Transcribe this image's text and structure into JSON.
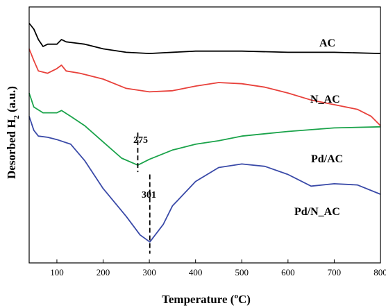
{
  "chart_data": {
    "type": "line",
    "xlabel_main": "Temperature (",
    "xlabel_sup": "o",
    "xlabel_end": "C)",
    "ylabel_main": "Desorbed H",
    "ylabel_sub": "2",
    "ylabel_end": " (a.u.)",
    "xlim": [
      40,
      800
    ],
    "xticks": [
      100,
      200,
      300,
      400,
      500,
      600,
      700,
      800
    ],
    "yticks_shown": false,
    "legend": "inline labels at right of each curve",
    "series": [
      {
        "name": "AC",
        "color": "#000000",
        "points": [
          [
            40,
            9.7
          ],
          [
            50,
            9.45
          ],
          [
            60,
            9.0
          ],
          [
            70,
            8.7
          ],
          [
            80,
            8.8
          ],
          [
            100,
            8.8
          ],
          [
            110,
            9.0
          ],
          [
            120,
            8.9
          ],
          [
            140,
            8.85
          ],
          [
            160,
            8.8
          ],
          [
            200,
            8.6
          ],
          [
            250,
            8.45
          ],
          [
            300,
            8.4
          ],
          [
            400,
            8.5
          ],
          [
            500,
            8.5
          ],
          [
            600,
            8.45
          ],
          [
            700,
            8.45
          ],
          [
            800,
            8.4
          ]
        ]
      },
      {
        "name": "N_AC",
        "color": "#e8413b",
        "points": [
          [
            40,
            8.6
          ],
          [
            50,
            8.1
          ],
          [
            60,
            7.65
          ],
          [
            80,
            7.55
          ],
          [
            100,
            7.75
          ],
          [
            110,
            7.9
          ],
          [
            120,
            7.65
          ],
          [
            150,
            7.55
          ],
          [
            200,
            7.3
          ],
          [
            250,
            6.9
          ],
          [
            300,
            6.75
          ],
          [
            350,
            6.8
          ],
          [
            400,
            7.0
          ],
          [
            450,
            7.15
          ],
          [
            500,
            7.1
          ],
          [
            550,
            6.95
          ],
          [
            600,
            6.7
          ],
          [
            650,
            6.4
          ],
          [
            700,
            6.2
          ],
          [
            750,
            6.0
          ],
          [
            780,
            5.7
          ],
          [
            800,
            5.3
          ]
        ]
      },
      {
        "name": "Pd/AC",
        "color": "#1aa34a",
        "points": [
          [
            40,
            6.7
          ],
          [
            50,
            6.1
          ],
          [
            70,
            5.85
          ],
          [
            100,
            5.85
          ],
          [
            110,
            5.95
          ],
          [
            130,
            5.7
          ],
          [
            160,
            5.3
          ],
          [
            200,
            4.6
          ],
          [
            240,
            3.9
          ],
          [
            275,
            3.6
          ],
          [
            300,
            3.85
          ],
          [
            350,
            4.25
          ],
          [
            400,
            4.5
          ],
          [
            450,
            4.65
          ],
          [
            500,
            4.85
          ],
          [
            550,
            4.95
          ],
          [
            600,
            5.05
          ],
          [
            700,
            5.2
          ],
          [
            800,
            5.25
          ]
        ]
      },
      {
        "name": "Pd/N_AC",
        "color": "#3a4aa8",
        "points": [
          [
            40,
            5.7
          ],
          [
            50,
            5.1
          ],
          [
            60,
            4.85
          ],
          [
            80,
            4.8
          ],
          [
            100,
            4.7
          ],
          [
            130,
            4.5
          ],
          [
            160,
            3.8
          ],
          [
            200,
            2.6
          ],
          [
            250,
            1.4
          ],
          [
            280,
            0.6
          ],
          [
            301,
            0.3
          ],
          [
            330,
            1.05
          ],
          [
            350,
            1.85
          ],
          [
            400,
            2.9
          ],
          [
            450,
            3.5
          ],
          [
            500,
            3.65
          ],
          [
            550,
            3.55
          ],
          [
            600,
            3.2
          ],
          [
            650,
            2.7
          ],
          [
            700,
            2.8
          ],
          [
            750,
            2.75
          ],
          [
            800,
            2.35
          ]
        ]
      }
    ],
    "annotations": [
      {
        "label": "275",
        "x": 275,
        "y_from": 5.0,
        "y_to": 3.3
      },
      {
        "label": "301",
        "x": 301,
        "y_from": 3.2,
        "y_to": -0.2
      }
    ],
    "ylim": [
      -0.6,
      10.4
    ]
  }
}
